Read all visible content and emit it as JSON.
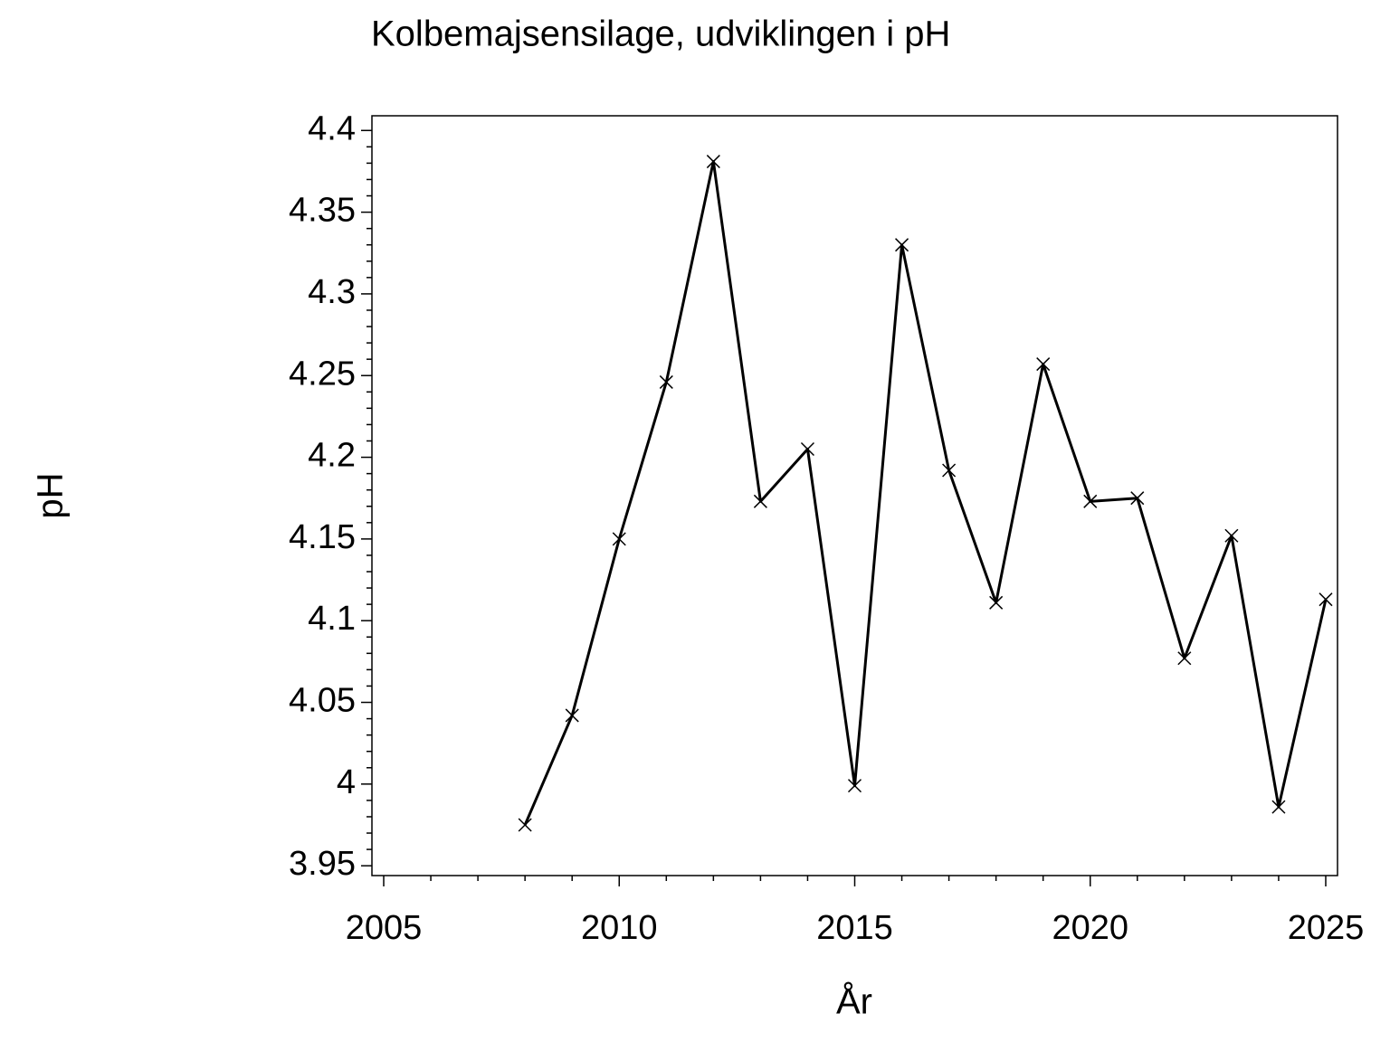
{
  "chart_data": {
    "type": "line",
    "title": "Kolbemajsensilage,  udviklingen  i  pH",
    "x_label": "År",
    "y_label": "pH",
    "x": [
      2008,
      2009,
      2010,
      2011,
      2012,
      2013,
      2014,
      2015,
      2016,
      2017,
      2018,
      2019,
      2020,
      2021,
      2022,
      2023,
      2024,
      2025
    ],
    "series": [
      {
        "name": "pH",
        "color": "#000000",
        "values": [
          3.975,
          4.042,
          4.15,
          4.246,
          4.381,
          4.173,
          4.205,
          3.999,
          4.33,
          4.192,
          4.111,
          4.257,
          4.173,
          4.175,
          4.077,
          4.152,
          3.986,
          4.113
        ]
      }
    ],
    "xlim": [
      2004.75,
      2025.25
    ],
    "xticks": [
      2005,
      2010,
      2015,
      2020,
      2025
    ],
    "ylim": [
      3.944,
      4.409
    ],
    "yticks": [
      3.95,
      4,
      4.05,
      4.1,
      4.15,
      4.2,
      4.25,
      4.3,
      4.35,
      4.4
    ],
    "marker": "x",
    "grid": false
  }
}
